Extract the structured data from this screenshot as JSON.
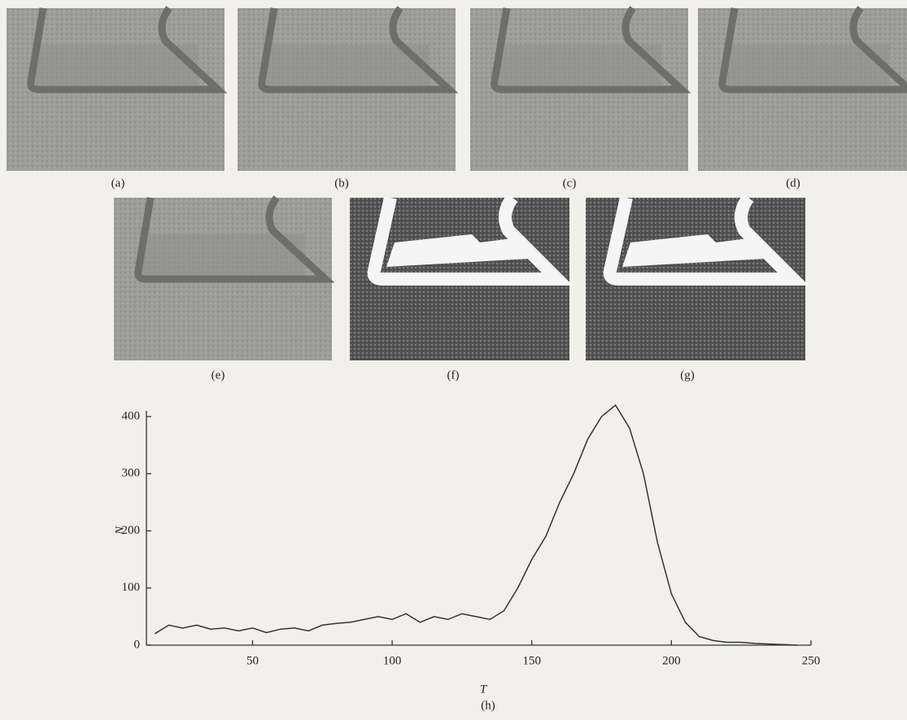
{
  "panels": {
    "labels": [
      "(a)",
      "(b)",
      "(c)",
      "(d)",
      "(e)",
      "(f)",
      "(g)"
    ]
  },
  "chart_data": {
    "type": "line",
    "panel_label": "(h)",
    "x_label": "T",
    "y_label": "N",
    "x": [
      15,
      20,
      25,
      30,
      35,
      40,
      45,
      50,
      55,
      60,
      65,
      70,
      75,
      80,
      85,
      90,
      95,
      100,
      105,
      110,
      115,
      120,
      125,
      130,
      135,
      140,
      145,
      150,
      155,
      160,
      165,
      170,
      175,
      180,
      185,
      190,
      195,
      200,
      205,
      210,
      215,
      220,
      225,
      230,
      235,
      240,
      245
    ],
    "series": [
      {
        "name": "N",
        "color": "#333333",
        "values": [
          20,
          35,
          30,
          35,
          28,
          30,
          25,
          30,
          22,
          28,
          30,
          25,
          35,
          38,
          40,
          45,
          50,
          45,
          55,
          40,
          50,
          45,
          55,
          50,
          45,
          60,
          100,
          150,
          190,
          250,
          300,
          360,
          400,
          420,
          380,
          300,
          180,
          90,
          40,
          15,
          8,
          5,
          5,
          3,
          2,
          1,
          0
        ]
      }
    ],
    "xlim": [
      12,
      250
    ],
    "ylim": [
      0,
      410
    ],
    "xticks": [
      50,
      100,
      150,
      200,
      250
    ],
    "yticks": [
      0,
      100,
      200,
      300,
      400
    ]
  }
}
